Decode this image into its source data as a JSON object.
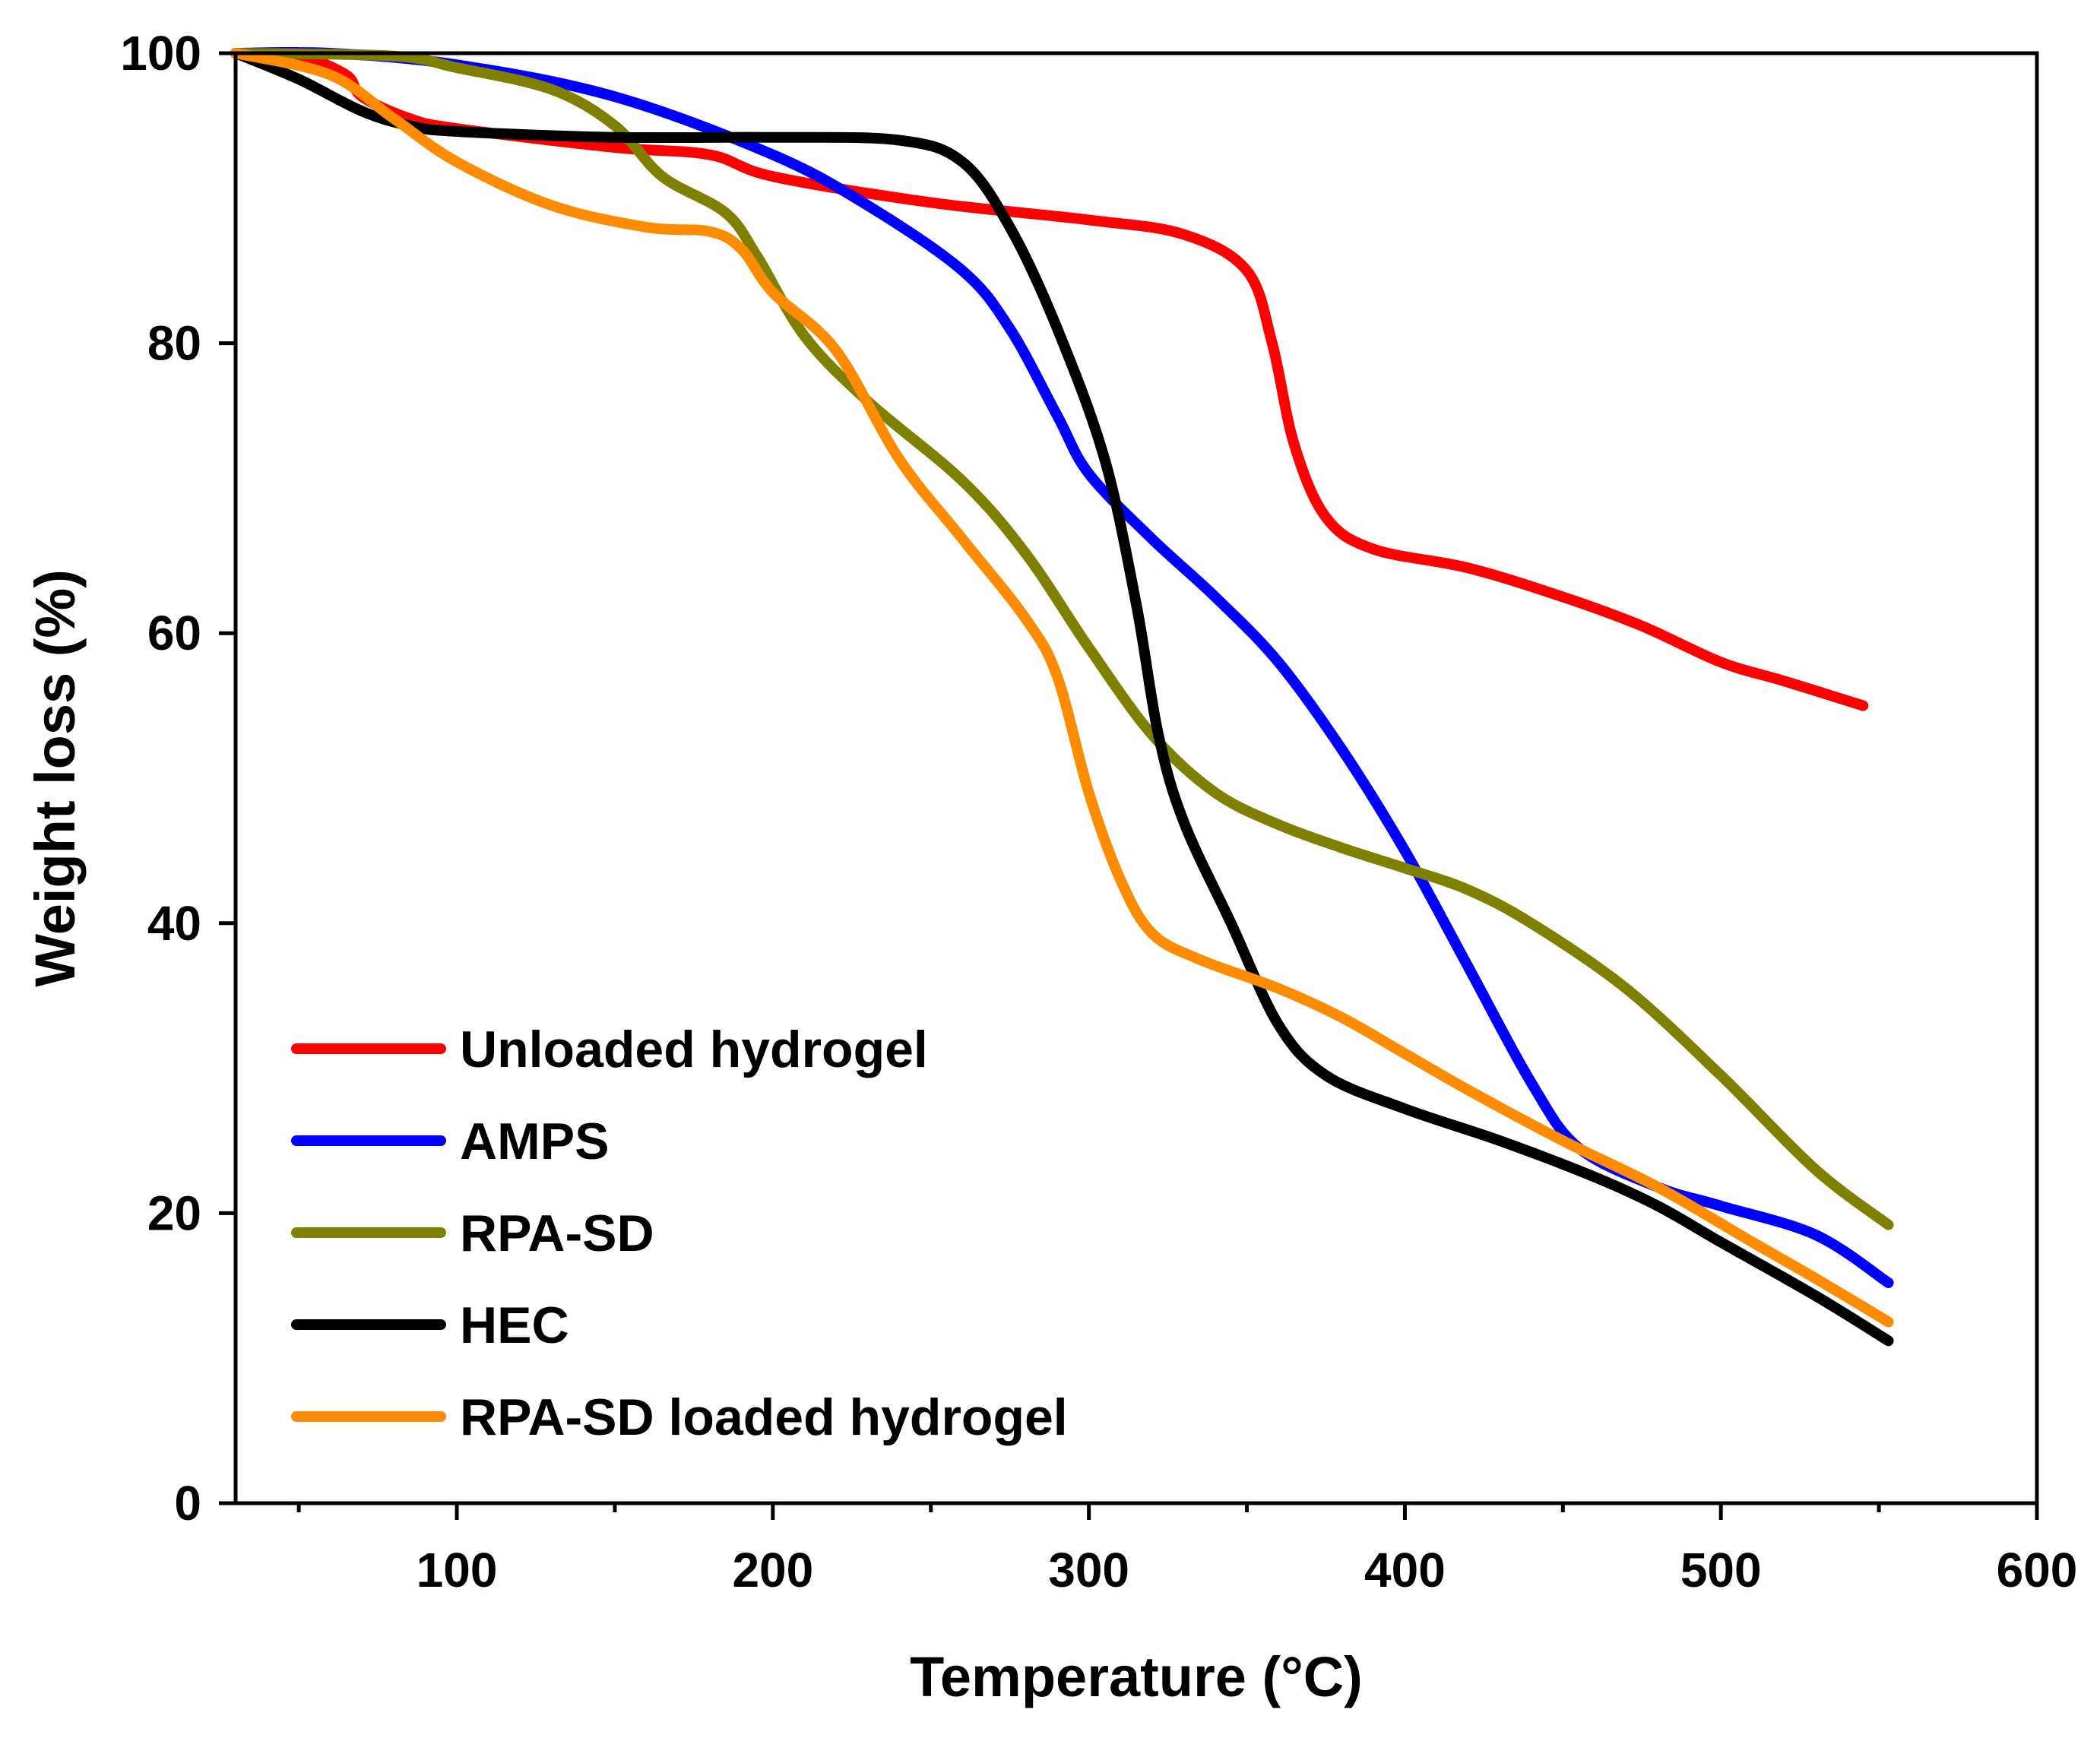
{
  "chart_data": {
    "type": "line",
    "title": "",
    "xlabel": "Temperature (°C)",
    "ylabel": "Weight loss (%)",
    "xlim": [
      30,
      600
    ],
    "ylim": [
      0,
      100
    ],
    "xticks": [
      100,
      200,
      300,
      400,
      500,
      600
    ],
    "xminor": [
      50,
      150,
      250,
      350,
      450,
      550
    ],
    "yticks": [
      0,
      20,
      40,
      60,
      80,
      100
    ],
    "legend_position": "bottom-left",
    "series": [
      {
        "name": "Unloaded hydrogel",
        "color": "#ff0000",
        "points": [
          [
            30,
            100
          ],
          [
            50,
            99.8
          ],
          [
            65,
            98.5
          ],
          [
            70,
            97
          ],
          [
            85,
            95.5
          ],
          [
            100,
            94.8
          ],
          [
            150,
            93.5
          ],
          [
            180,
            93
          ],
          [
            200,
            91.5
          ],
          [
            250,
            89.7
          ],
          [
            300,
            88.5
          ],
          [
            330,
            87.5
          ],
          [
            350,
            85
          ],
          [
            358,
            80
          ],
          [
            365,
            73
          ],
          [
            375,
            68
          ],
          [
            390,
            65.8
          ],
          [
            420,
            64.5
          ],
          [
            450,
            62.5
          ],
          [
            475,
            60.5
          ],
          [
            500,
            58
          ],
          [
            520,
            56.7
          ],
          [
            545,
            55
          ]
        ]
      },
      {
        "name": "AMPS",
        "color": "#0000ff",
        "points": [
          [
            30,
            100
          ],
          [
            60,
            100
          ],
          [
            100,
            99.2
          ],
          [
            150,
            97
          ],
          [
            200,
            93
          ],
          [
            230,
            89.5
          ],
          [
            260,
            85
          ],
          [
            275,
            81
          ],
          [
            290,
            75
          ],
          [
            300,
            71
          ],
          [
            320,
            66.5
          ],
          [
            340,
            62.5
          ],
          [
            360,
            58
          ],
          [
            380,
            52
          ],
          [
            400,
            45
          ],
          [
            420,
            37
          ],
          [
            440,
            29
          ],
          [
            455,
            24.5
          ],
          [
            480,
            21.8
          ],
          [
            500,
            20.5
          ],
          [
            530,
            18.5
          ],
          [
            553,
            15.2
          ]
        ]
      },
      {
        "name": "RPA-SD",
        "color": "#808000",
        "points": [
          [
            30,
            100
          ],
          [
            80,
            99.8
          ],
          [
            100,
            99
          ],
          [
            130,
            97.5
          ],
          [
            150,
            95
          ],
          [
            165,
            91.5
          ],
          [
            185,
            89
          ],
          [
            195,
            86
          ],
          [
            210,
            80.5
          ],
          [
            230,
            76
          ],
          [
            260,
            70.5
          ],
          [
            280,
            65.5
          ],
          [
            300,
            59
          ],
          [
            320,
            53
          ],
          [
            340,
            49
          ],
          [
            360,
            46.8
          ],
          [
            380,
            45.2
          ],
          [
            400,
            43.8
          ],
          [
            420,
            42.3
          ],
          [
            440,
            40
          ],
          [
            470,
            35.5
          ],
          [
            500,
            29.5
          ],
          [
            530,
            23
          ],
          [
            553,
            19.2
          ]
        ]
      },
      {
        "name": "HEC",
        "color": "#000000",
        "points": [
          [
            30,
            100
          ],
          [
            50,
            98.2
          ],
          [
            70,
            96
          ],
          [
            85,
            95
          ],
          [
            100,
            94.6
          ],
          [
            150,
            94.2
          ],
          [
            200,
            94.2
          ],
          [
            240,
            94
          ],
          [
            260,
            92.5
          ],
          [
            275,
            88
          ],
          [
            290,
            81
          ],
          [
            305,
            72
          ],
          [
            315,
            62
          ],
          [
            322,
            53
          ],
          [
            330,
            47
          ],
          [
            345,
            40
          ],
          [
            360,
            33
          ],
          [
            375,
            29.5
          ],
          [
            400,
            27.2
          ],
          [
            430,
            25
          ],
          [
            460,
            22.5
          ],
          [
            480,
            20.5
          ],
          [
            500,
            18
          ],
          [
            530,
            14.3
          ],
          [
            553,
            11.2
          ]
        ]
      },
      {
        "name": "RPA-SD loaded hydrogel",
        "color": "#ff8c00",
        "points": [
          [
            30,
            100
          ],
          [
            60,
            98.5
          ],
          [
            80,
            95.5
          ],
          [
            100,
            92.5
          ],
          [
            130,
            89.5
          ],
          [
            160,
            88
          ],
          [
            180,
            87.7
          ],
          [
            190,
            86.5
          ],
          [
            200,
            83.5
          ],
          [
            220,
            79.5
          ],
          [
            240,
            72
          ],
          [
            260,
            66.5
          ],
          [
            280,
            61
          ],
          [
            290,
            57
          ],
          [
            300,
            49
          ],
          [
            310,
            43
          ],
          [
            320,
            39.3
          ],
          [
            335,
            37.5
          ],
          [
            360,
            35.5
          ],
          [
            380,
            33.5
          ],
          [
            400,
            31
          ],
          [
            420,
            28.5
          ],
          [
            450,
            25
          ],
          [
            480,
            21.8
          ],
          [
            510,
            18
          ],
          [
            530,
            15.5
          ],
          [
            553,
            12.5
          ]
        ]
      }
    ]
  }
}
